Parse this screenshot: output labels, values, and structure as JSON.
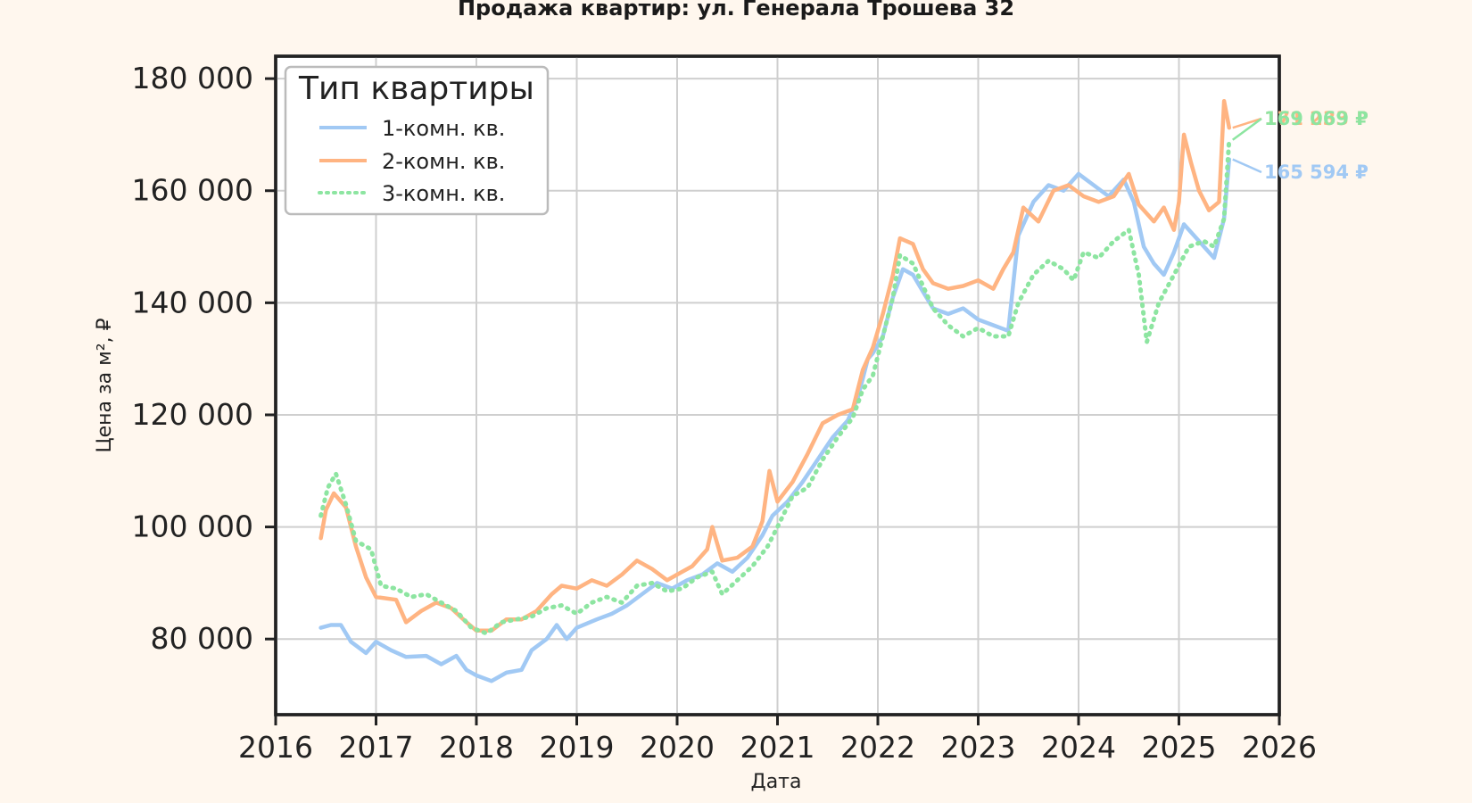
{
  "chart_data": {
    "type": "line",
    "title": "Продажа квартир: ул. Генерала Трошева 32",
    "xlabel": "Дата",
    "ylabel": "Цена за м², ₽",
    "xlim": [
      2016,
      2026
    ],
    "ylim": [
      66500,
      184000
    ],
    "x_ticks": [
      "2016",
      "2017",
      "2018",
      "2019",
      "2020",
      "2021",
      "2022",
      "2023",
      "2024",
      "2025",
      "2026"
    ],
    "y_ticks": [
      "80 000",
      "100 000",
      "120 000",
      "140 000",
      "160 000",
      "180 000"
    ],
    "y_tick_values": [
      80000,
      100000,
      120000,
      140000,
      160000,
      180000
    ],
    "grid": true,
    "legend": {
      "title": "Тип квартиры",
      "position": "top-left"
    },
    "series": [
      {
        "name": "1-комн. кв.",
        "color": "#a1c9f4",
        "style": "solid",
        "end_label": "165 594 ₽",
        "points": [
          [
            2016.45,
            82000
          ],
          [
            2016.55,
            82500
          ],
          [
            2016.65,
            82500
          ],
          [
            2016.75,
            79500
          ],
          [
            2016.9,
            77500
          ],
          [
            2017.0,
            79500
          ],
          [
            2017.15,
            78000
          ],
          [
            2017.3,
            76800
          ],
          [
            2017.5,
            77000
          ],
          [
            2017.65,
            75500
          ],
          [
            2017.8,
            77000
          ],
          [
            2017.9,
            74500
          ],
          [
            2018.0,
            73500
          ],
          [
            2018.15,
            72500
          ],
          [
            2018.3,
            74000
          ],
          [
            2018.45,
            74500
          ],
          [
            2018.55,
            78000
          ],
          [
            2018.7,
            80000
          ],
          [
            2018.8,
            82500
          ],
          [
            2018.9,
            80000
          ],
          [
            2019.0,
            82000
          ],
          [
            2019.2,
            83500
          ],
          [
            2019.35,
            84500
          ],
          [
            2019.5,
            86000
          ],
          [
            2019.65,
            88000
          ],
          [
            2019.8,
            90000
          ],
          [
            2019.95,
            89000
          ],
          [
            2020.1,
            90500
          ],
          [
            2020.25,
            91500
          ],
          [
            2020.4,
            93500
          ],
          [
            2020.55,
            92000
          ],
          [
            2020.7,
            94500
          ],
          [
            2020.85,
            98500
          ],
          [
            2020.95,
            102000
          ],
          [
            2021.1,
            104500
          ],
          [
            2021.25,
            108000
          ],
          [
            2021.4,
            112000
          ],
          [
            2021.55,
            116000
          ],
          [
            2021.7,
            119000
          ],
          [
            2021.8,
            123000
          ],
          [
            2021.9,
            130000
          ],
          [
            2021.95,
            131000
          ],
          [
            2022.05,
            134000
          ],
          [
            2022.15,
            141000
          ],
          [
            2022.25,
            146000
          ],
          [
            2022.35,
            145000
          ],
          [
            2022.45,
            142000
          ],
          [
            2022.55,
            139000
          ],
          [
            2022.7,
            138000
          ],
          [
            2022.85,
            139000
          ],
          [
            2023.0,
            137000
          ],
          [
            2023.15,
            136000
          ],
          [
            2023.3,
            135000
          ],
          [
            2023.4,
            152000
          ],
          [
            2023.55,
            158000
          ],
          [
            2023.7,
            161000
          ],
          [
            2023.85,
            160000
          ],
          [
            2024.0,
            163000
          ],
          [
            2024.15,
            161000
          ],
          [
            2024.3,
            159000
          ],
          [
            2024.45,
            162000
          ],
          [
            2024.55,
            158000
          ],
          [
            2024.65,
            150000
          ],
          [
            2024.75,
            147000
          ],
          [
            2024.85,
            145000
          ],
          [
            2024.95,
            149000
          ],
          [
            2025.05,
            154000
          ],
          [
            2025.15,
            152000
          ],
          [
            2025.25,
            150000
          ],
          [
            2025.35,
            148000
          ],
          [
            2025.45,
            155000
          ],
          [
            2025.5,
            165594
          ]
        ]
      },
      {
        "name": "2-комн. кв.",
        "color": "#ffb482",
        "style": "solid",
        "end_label": "171 233 ₽",
        "points": [
          [
            2016.45,
            98000
          ],
          [
            2016.5,
            103000
          ],
          [
            2016.58,
            106000
          ],
          [
            2016.7,
            103500
          ],
          [
            2016.8,
            96500
          ],
          [
            2016.9,
            91000
          ],
          [
            2017.0,
            87500
          ],
          [
            2017.2,
            87000
          ],
          [
            2017.3,
            83000
          ],
          [
            2017.45,
            85000
          ],
          [
            2017.6,
            86500
          ],
          [
            2017.75,
            85500
          ],
          [
            2017.9,
            83000
          ],
          [
            2018.0,
            81500
          ],
          [
            2018.15,
            81500
          ],
          [
            2018.3,
            83500
          ],
          [
            2018.45,
            83500
          ],
          [
            2018.6,
            85000
          ],
          [
            2018.75,
            88000
          ],
          [
            2018.85,
            89500
          ],
          [
            2019.0,
            89000
          ],
          [
            2019.15,
            90500
          ],
          [
            2019.3,
            89500
          ],
          [
            2019.45,
            91500
          ],
          [
            2019.6,
            94000
          ],
          [
            2019.75,
            92500
          ],
          [
            2019.9,
            90500
          ],
          [
            2020.0,
            91500
          ],
          [
            2020.15,
            93000
          ],
          [
            2020.3,
            96000
          ],
          [
            2020.35,
            100000
          ],
          [
            2020.45,
            94000
          ],
          [
            2020.6,
            94500
          ],
          [
            2020.75,
            96500
          ],
          [
            2020.85,
            101000
          ],
          [
            2020.92,
            110000
          ],
          [
            2021.0,
            104500
          ],
          [
            2021.15,
            108000
          ],
          [
            2021.3,
            113000
          ],
          [
            2021.45,
            118500
          ],
          [
            2021.6,
            120000
          ],
          [
            2021.75,
            121000
          ],
          [
            2021.85,
            128000
          ],
          [
            2021.95,
            132000
          ],
          [
            2022.05,
            138000
          ],
          [
            2022.15,
            145000
          ],
          [
            2022.22,
            151500
          ],
          [
            2022.35,
            150500
          ],
          [
            2022.45,
            146000
          ],
          [
            2022.55,
            143500
          ],
          [
            2022.7,
            142500
          ],
          [
            2022.85,
            143000
          ],
          [
            2023.0,
            144000
          ],
          [
            2023.15,
            142500
          ],
          [
            2023.25,
            146000
          ],
          [
            2023.35,
            149000
          ],
          [
            2023.45,
            157000
          ],
          [
            2023.6,
            154500
          ],
          [
            2023.75,
            160000
          ],
          [
            2023.9,
            161000
          ],
          [
            2024.05,
            159000
          ],
          [
            2024.2,
            158000
          ],
          [
            2024.35,
            159000
          ],
          [
            2024.5,
            163000
          ],
          [
            2024.6,
            157500
          ],
          [
            2024.75,
            154500
          ],
          [
            2024.85,
            157000
          ],
          [
            2024.95,
            153000
          ],
          [
            2025.0,
            158000
          ],
          [
            2025.05,
            170000
          ],
          [
            2025.12,
            165000
          ],
          [
            2025.2,
            160000
          ],
          [
            2025.3,
            156500
          ],
          [
            2025.4,
            158000
          ],
          [
            2025.45,
            176000
          ],
          [
            2025.5,
            171233
          ]
        ]
      },
      {
        "name": "3-комн. кв.",
        "color": "#8de5a1",
        "style": "dotted",
        "end_label": "169 069 ₽",
        "points": [
          [
            2016.45,
            102000
          ],
          [
            2016.52,
            107000
          ],
          [
            2016.6,
            109500
          ],
          [
            2016.7,
            104000
          ],
          [
            2016.8,
            97500
          ],
          [
            2016.95,
            96000
          ],
          [
            2017.05,
            89500
          ],
          [
            2017.2,
            89000
          ],
          [
            2017.35,
            87500
          ],
          [
            2017.5,
            88000
          ],
          [
            2017.65,
            86500
          ],
          [
            2017.8,
            85000
          ],
          [
            2017.95,
            82000
          ],
          [
            2018.1,
            81000
          ],
          [
            2018.25,
            83000
          ],
          [
            2018.4,
            83500
          ],
          [
            2018.55,
            84000
          ],
          [
            2018.7,
            85500
          ],
          [
            2018.85,
            86000
          ],
          [
            2019.0,
            84500
          ],
          [
            2019.15,
            86500
          ],
          [
            2019.3,
            87500
          ],
          [
            2019.45,
            86500
          ],
          [
            2019.6,
            89500
          ],
          [
            2019.75,
            90000
          ],
          [
            2019.9,
            88500
          ],
          [
            2020.05,
            89000
          ],
          [
            2020.2,
            91000
          ],
          [
            2020.35,
            92000
          ],
          [
            2020.45,
            88000
          ],
          [
            2020.6,
            90500
          ],
          [
            2020.75,
            93000
          ],
          [
            2020.9,
            96500
          ],
          [
            2021.0,
            100000
          ],
          [
            2021.15,
            105500
          ],
          [
            2021.3,
            107000
          ],
          [
            2021.45,
            112000
          ],
          [
            2021.6,
            116000
          ],
          [
            2021.75,
            119500
          ],
          [
            2021.85,
            124500
          ],
          [
            2021.95,
            127000
          ],
          [
            2022.05,
            134000
          ],
          [
            2022.15,
            141000
          ],
          [
            2022.22,
            148500
          ],
          [
            2022.35,
            147000
          ],
          [
            2022.45,
            143000
          ],
          [
            2022.55,
            139000
          ],
          [
            2022.7,
            136000
          ],
          [
            2022.85,
            134000
          ],
          [
            2023.0,
            135500
          ],
          [
            2023.15,
            134000
          ],
          [
            2023.3,
            134000
          ],
          [
            2023.4,
            140000
          ],
          [
            2023.55,
            145000
          ],
          [
            2023.7,
            147500
          ],
          [
            2023.85,
            146000
          ],
          [
            2023.95,
            144000
          ],
          [
            2024.05,
            149000
          ],
          [
            2024.2,
            148000
          ],
          [
            2024.35,
            151000
          ],
          [
            2024.5,
            153000
          ],
          [
            2024.6,
            145000
          ],
          [
            2024.68,
            133000
          ],
          [
            2024.8,
            140000
          ],
          [
            2024.95,
            145000
          ],
          [
            2025.1,
            150000
          ],
          [
            2025.25,
            151000
          ],
          [
            2025.35,
            150000
          ],
          [
            2025.45,
            155000
          ],
          [
            2025.5,
            169069
          ]
        ]
      }
    ]
  }
}
